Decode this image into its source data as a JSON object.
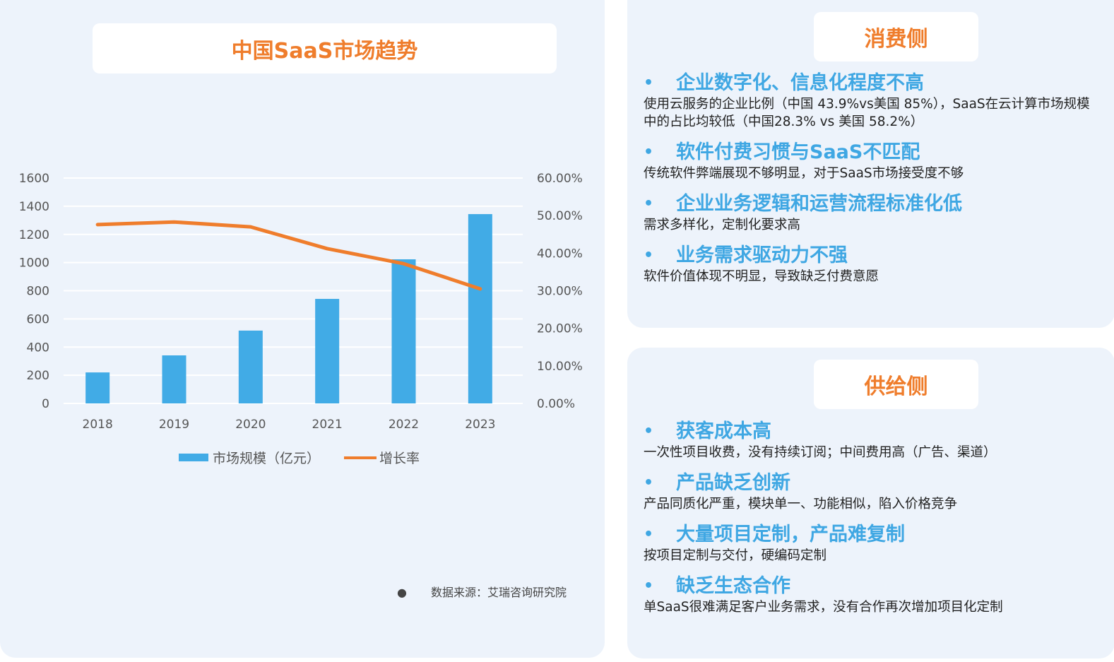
{
  "chart_data": {
    "type": "bar+line",
    "title": "中国SaaS市场趋势",
    "categories": [
      "2018",
      "2019",
      "2020",
      "2021",
      "2022",
      "2023"
    ],
    "series": [
      {
        "name": "市场规模（亿元）",
        "type": "bar",
        "axis": "left",
        "color": "#41abe6",
        "values": [
          220,
          341,
          517,
          742,
          1023,
          1344
        ]
      },
      {
        "name": "增长率",
        "type": "line",
        "axis": "right",
        "color": "#ef7d2c",
        "values": [
          47.6,
          48.3,
          47.0,
          41.2,
          37.2,
          30.5
        ]
      }
    ],
    "left_axis": {
      "ylim": [
        0,
        1600
      ],
      "ticks": [
        "0",
        "200",
        "400",
        "600",
        "800",
        "1000",
        "1200",
        "1400",
        "1600"
      ]
    },
    "right_axis": {
      "ylim": [
        0,
        60
      ],
      "ticks": [
        "0.00%",
        "10.00%",
        "20.00%",
        "30.00%",
        "40.00%",
        "50.00%",
        "60.00%"
      ]
    },
    "grid": true,
    "legend": "bottom"
  },
  "source": "数据来源：艾瑞咨询研究院",
  "consumer": {
    "title": "消费侧",
    "items": [
      {
        "head": "企业数字化、信息化程度不高",
        "desc": "使用云服务的企业比例（中国 43.9%vs美国 85%），SaaS在云计算市场规模中的占比均较低（中国28.3% vs 美国 58.2%）"
      },
      {
        "head": "软件付费习惯与SaaS不匹配",
        "desc": "传统软件弊端展现不够明显，对于SaaS市场接受度不够"
      },
      {
        "head": "企业业务逻辑和运营流程标准化低",
        "desc": "需求多样化，定制化要求高"
      },
      {
        "head": "业务需求驱动力不强",
        "desc": "软件价值体现不明显，导致缺乏付费意愿"
      }
    ]
  },
  "supply": {
    "title": "供给侧",
    "items": [
      {
        "head": "获客成本高",
        "desc": "一次性项目收费，没有持续订阅；中间费用高（广告、渠道）"
      },
      {
        "head": "产品缺乏创新",
        "desc": "产品同质化严重，模块单一、功能相似，陷入价格竞争"
      },
      {
        "head": "大量项目定制，产品难复制",
        "desc": "按项目定制与交付，硬编码定制"
      },
      {
        "head": "缺乏生态合作",
        "desc": "单SaaS很难满足客户业务需求，没有合作再次增加项目化定制"
      }
    ]
  }
}
